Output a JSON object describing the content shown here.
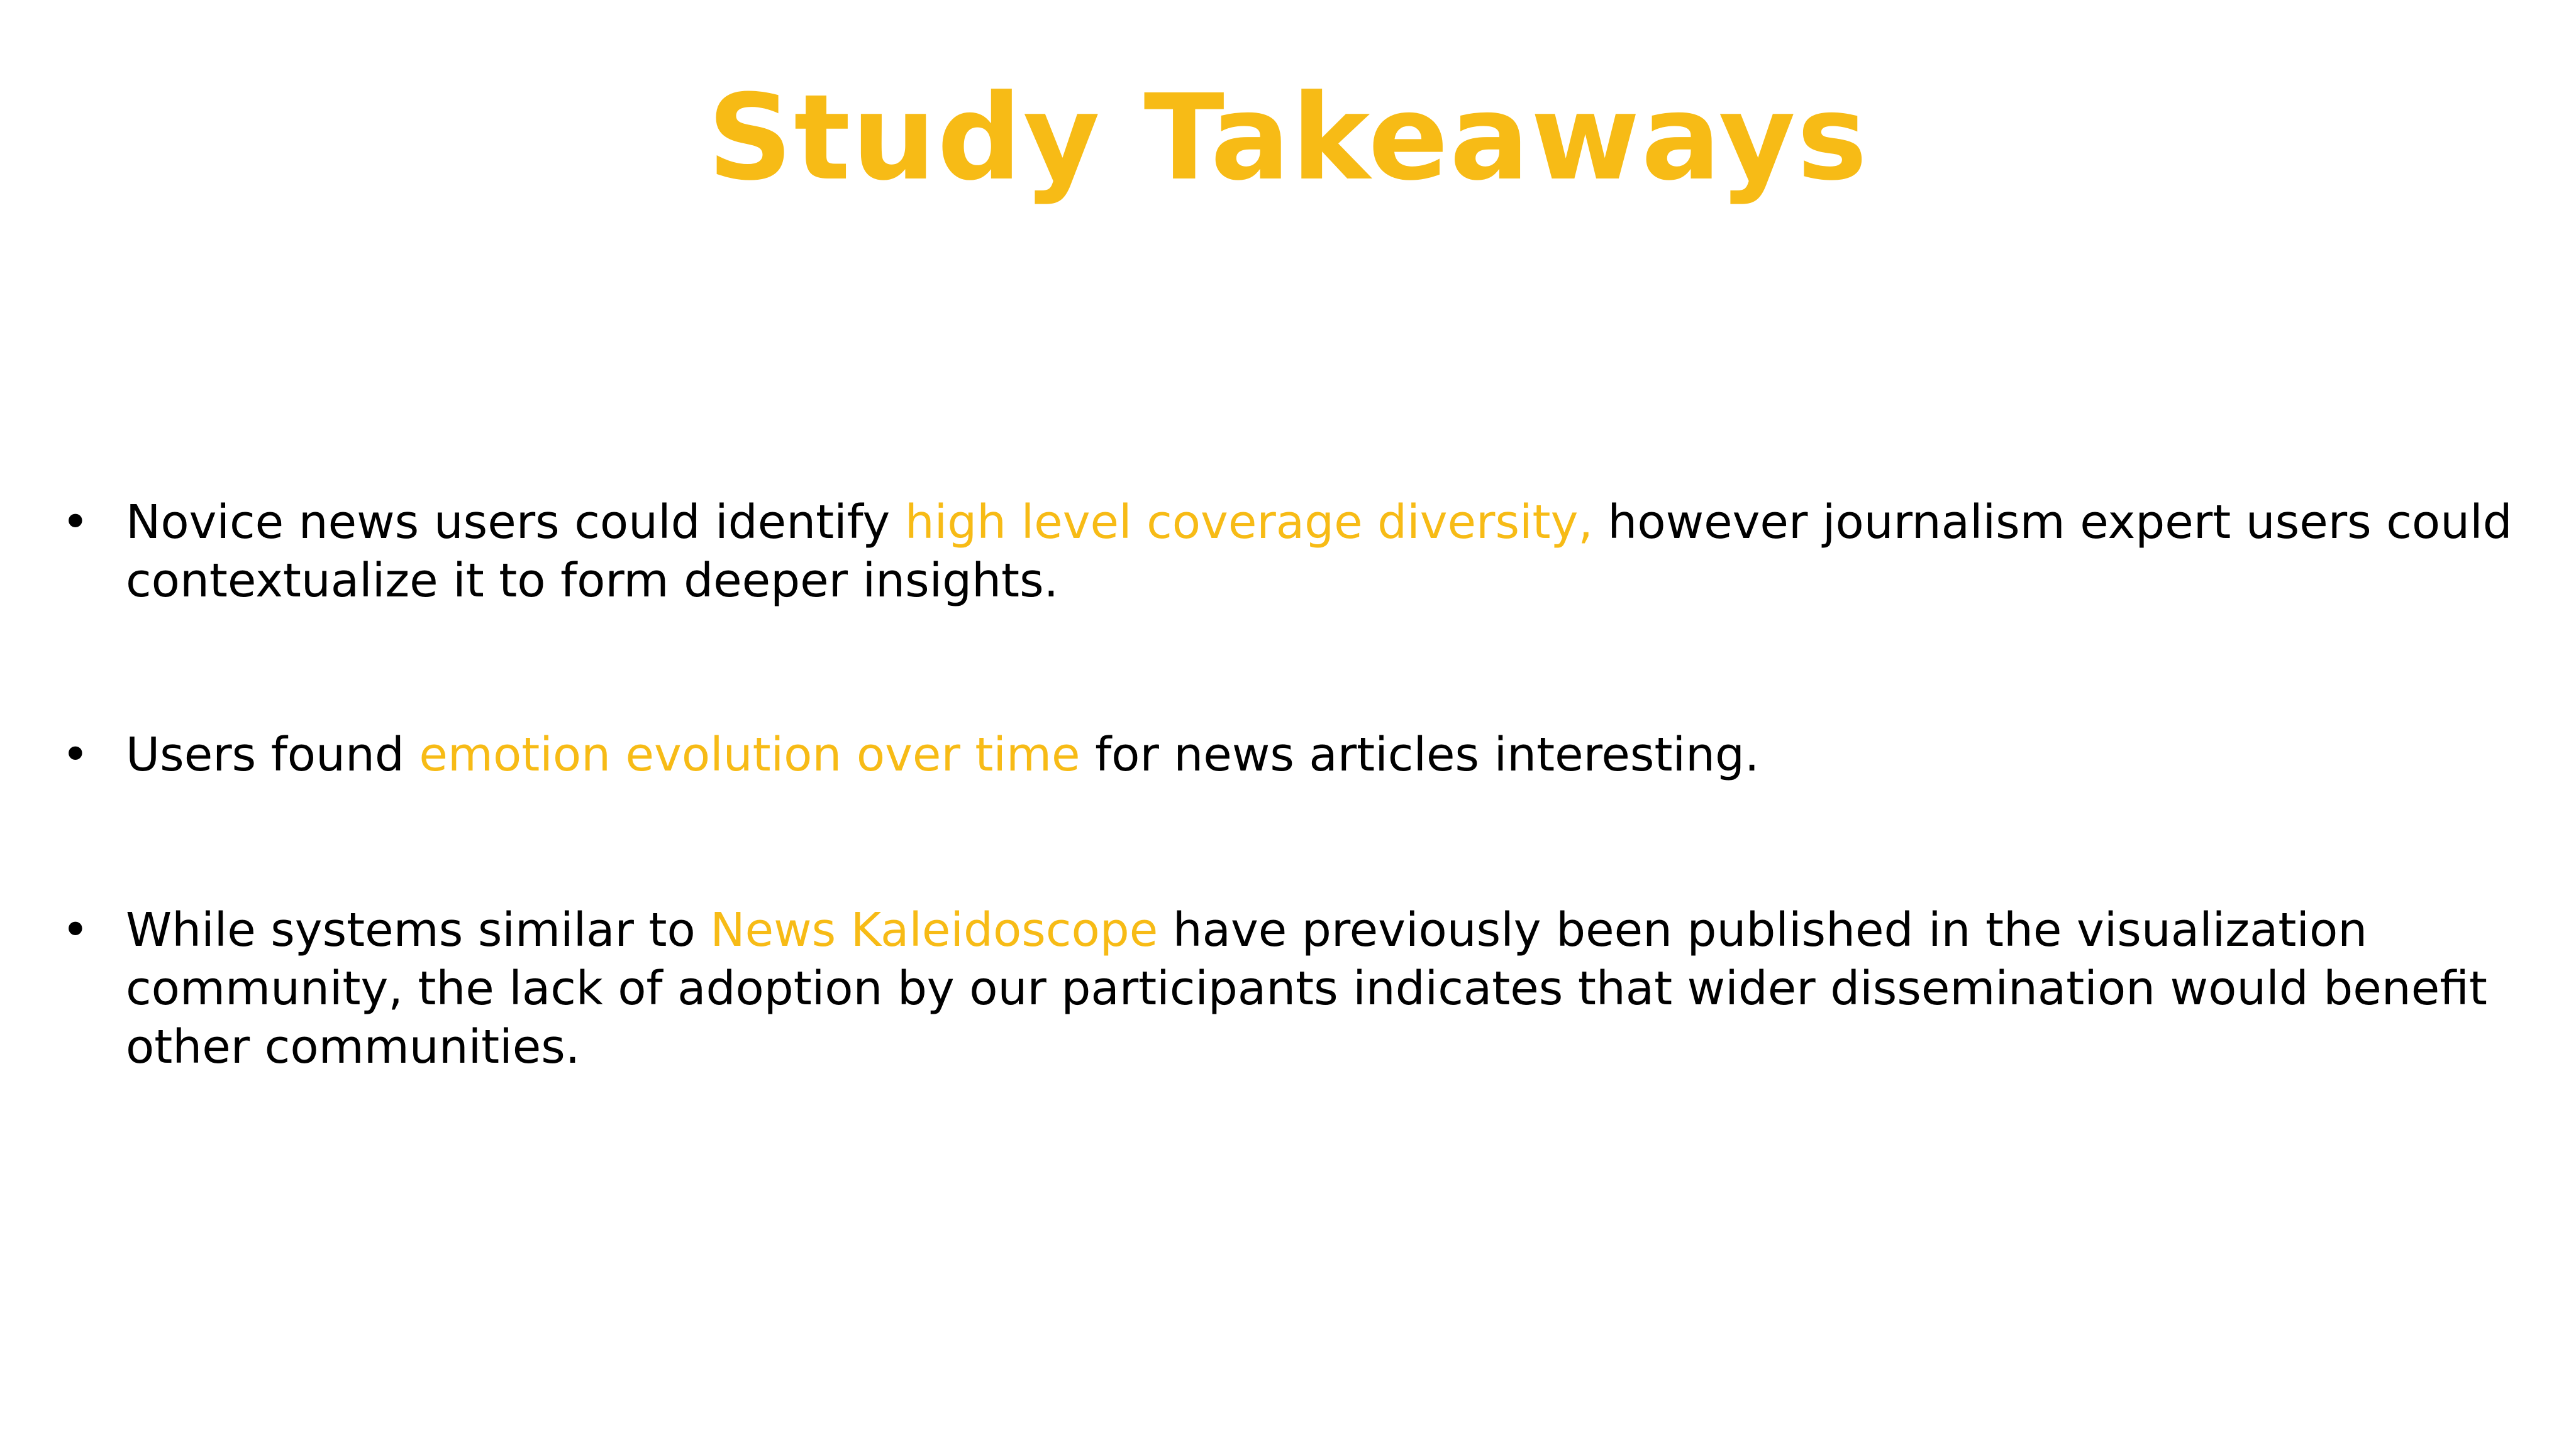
{
  "title": "Study Takeaways",
  "bullets": [
    {
      "segments": [
        {
          "text": "Novice news users could identify ",
          "highlight": false
        },
        {
          "text": "high level coverage diversity,",
          "highlight": true
        },
        {
          "text": " however journalism expert users could contextualize it to form deeper insights.",
          "highlight": false
        }
      ]
    },
    {
      "segments": [
        {
          "text": "Users found ",
          "highlight": false
        },
        {
          "text": "emotion evolution over time",
          "highlight": true
        },
        {
          "text": " for news articles interesting.",
          "highlight": false
        }
      ]
    },
    {
      "segments": [
        {
          "text": "While systems similar to ",
          "highlight": false
        },
        {
          "text": "News Kaleidoscope",
          "highlight": true
        },
        {
          "text": " have previously been published in the visualization community, the lack of adoption by our participants indicates that wider dissemination would benefit other communities.",
          "highlight": false
        }
      ]
    }
  ],
  "bullet_symbol": "•",
  "colors": {
    "accent": "#f7bb16",
    "text": "#000000",
    "background": "#ffffff"
  }
}
